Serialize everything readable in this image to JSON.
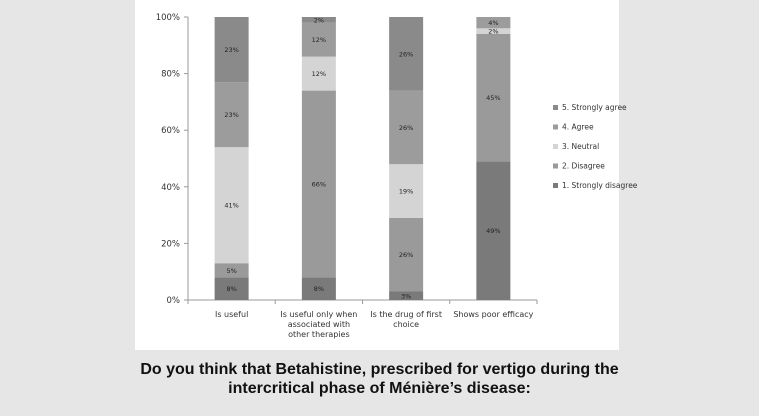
{
  "chart_data": {
    "type": "bar",
    "stacked": true,
    "percent": true,
    "categories": [
      [
        "Is useful"
      ],
      [
        "Is useful only when",
        "associated with",
        "other therapies"
      ],
      [
        "Is the drug of first",
        "choice"
      ],
      [
        "Shows poor efficacy"
      ]
    ],
    "ylim": [
      0,
      100
    ],
    "yticks": [
      "0%",
      "20%",
      "40%",
      "60%",
      "80%",
      "100%"
    ],
    "grid": false,
    "legend_position": "right",
    "series": [
      {
        "name": "1. Strongly disagree",
        "color": "#7a7a7a",
        "values": [
          8,
          8,
          3,
          49
        ],
        "labels": [
          "8%",
          "8%",
          "3%",
          "49%"
        ]
      },
      {
        "name": "2. Disagree",
        "color": "#9a9a9a",
        "values": [
          5,
          66,
          26,
          45
        ],
        "labels": [
          "5%",
          "66%",
          "26%",
          "45%"
        ]
      },
      {
        "name": "3. Neutral",
        "color": "#d4d4d4",
        "values": [
          41,
          12,
          19,
          2
        ],
        "labels": [
          "41%",
          "12%",
          "19%",
          "2%"
        ]
      },
      {
        "name": "4. Agree",
        "color": "#9c9c9c",
        "values": [
          23,
          12,
          26,
          4
        ],
        "labels": [
          "23%",
          "12%",
          "26%",
          "4%"
        ]
      },
      {
        "name": "5. Strongly agree",
        "color": "#8a8a8a",
        "values": [
          23,
          2,
          26,
          0
        ],
        "labels": [
          "23%",
          "2%",
          "26%",
          ""
        ]
      }
    ]
  },
  "caption": {
    "line1": "Do you think that Betahistine, prescribed for vertigo during the",
    "line2": "intercritical phase of Ménière’s disease:"
  }
}
